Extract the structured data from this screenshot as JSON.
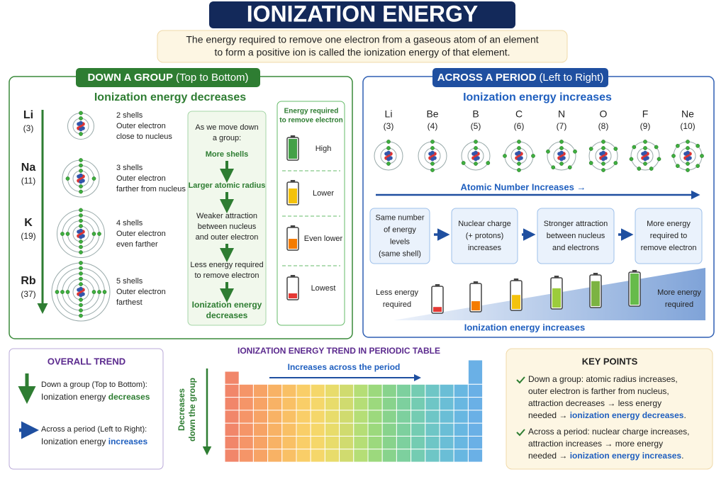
{
  "title": "IONIZATION ENERGY",
  "intro": [
    "The energy required to remove one electron from a gaseous atom of an element",
    "to form a positive ion is called the ionization energy of that element."
  ],
  "group": {
    "heading": "DOWN A GROUP",
    "heading_note": "(Top to Bottom)",
    "subheading": "Ionization energy decreases",
    "elements": [
      {
        "symbol": "Li",
        "number": "(3)",
        "description": [
          "2 shells",
          "Outer electron",
          "close to nucleus"
        ]
      },
      {
        "symbol": "Na",
        "number": "(11)",
        "description": [
          "3 shells",
          "Outer electron",
          "farther from nucleus"
        ]
      },
      {
        "symbol": "K",
        "number": "(19)",
        "description": [
          "4 shells",
          "Outer electron",
          "even farther"
        ]
      },
      {
        "symbol": "Rb",
        "number": "(37)",
        "description": [
          "5 shells",
          "Outer electron",
          "farthest"
        ]
      }
    ],
    "flow": {
      "intro": [
        "As we move down",
        "a group:"
      ],
      "steps": [
        [
          "More shells"
        ],
        [
          "Larger atomic radius"
        ],
        [
          "Weaker attraction",
          "between nucleus",
          "and outer electron"
        ],
        [
          "Less energy required",
          "to remove electron"
        ],
        [
          "Ionization energy",
          "decreases"
        ]
      ]
    },
    "energy": {
      "title": [
        "Energy required",
        "to remove electron"
      ],
      "levels": [
        "High",
        "Lower",
        "Even lower",
        "Lowest"
      ]
    }
  },
  "period": {
    "heading": "ACROSS A PERIOD",
    "heading_note": "(Left to Right)",
    "subheading": "Ionization energy increases",
    "elements": [
      {
        "symbol": "Li",
        "number": "(3)"
      },
      {
        "symbol": "Be",
        "number": "(4)"
      },
      {
        "symbol": "B",
        "number": "(5)"
      },
      {
        "symbol": "C",
        "number": "(6)"
      },
      {
        "symbol": "N",
        "number": "(7)"
      },
      {
        "symbol": "O",
        "number": "(8)"
      },
      {
        "symbol": "F",
        "number": "(9)"
      },
      {
        "symbol": "Ne",
        "number": "(10)"
      }
    ],
    "axis_label": "Atomic Number Increases →",
    "steps": [
      [
        "Same number",
        "of energy",
        "levels",
        "(same shell)"
      ],
      [
        "Nuclear charge",
        "(+ protons)",
        "increases"
      ],
      [
        "Stronger attraction",
        "between nucleus",
        "and electrons"
      ],
      [
        "More energy",
        "required to",
        "remove electron"
      ]
    ],
    "low_label": [
      "Less energy",
      "required"
    ],
    "high_label": [
      "More energy",
      "required"
    ],
    "footer": "Ionization energy increases"
  },
  "overall": {
    "title": "OVERALL TREND",
    "items": [
      {
        "line": "Down a group (Top to Bottom):",
        "prefix": "Ionization energy ",
        "emphasis": "decreases"
      },
      {
        "line": "Across a period (Left to Right):",
        "prefix": "Ionization energy ",
        "emphasis": "increases"
      }
    ]
  },
  "table": {
    "title": "IONIZATION ENERGY TREND IN PERIODIC TABLE",
    "across": "Increases across the period",
    "down": [
      "Decreases",
      "down the group"
    ]
  },
  "key_points": {
    "title": "KEY POINTS",
    "points": [
      {
        "lines": [
          "Down a group: atomic radius increases,",
          "outer electron is farther from nucleus,",
          "attraction decreases → less energy"
        ],
        "last": "needed → ",
        "emphasis": "ionization energy decreases",
        "end": "."
      },
      {
        "lines": [
          "Across a period: nuclear charge increases,",
          "attraction increases → more energy"
        ],
        "last": "needed → ",
        "emphasis": "ionization energy increases",
        "end": "."
      }
    ]
  }
}
